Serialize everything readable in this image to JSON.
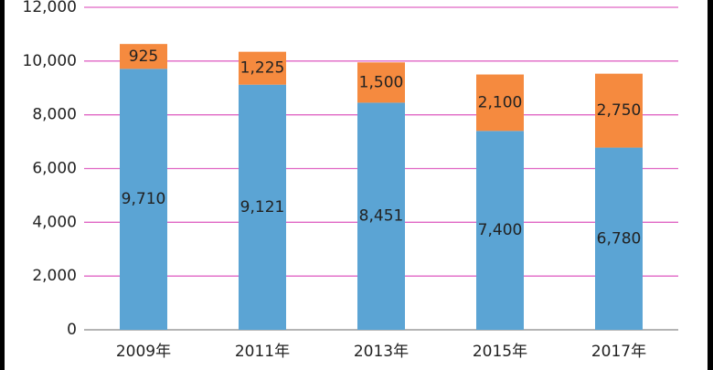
{
  "chart_data": {
    "type": "stacked-bar",
    "categories": [
      "2009年",
      "2011年",
      "2013年",
      "2015年",
      "2017年"
    ],
    "series": [
      {
        "color": "#5ba4d4",
        "values": [
          9710,
          9121,
          8451,
          7400,
          6780
        ],
        "value_labels": [
          "9,710",
          "9,121",
          "8,451",
          "7,400",
          "6,780"
        ]
      },
      {
        "color": "#f58a3f",
        "values": [
          925,
          1225,
          1500,
          2100,
          2750
        ],
        "value_labels": [
          "925",
          "1,225",
          "1,500",
          "2,100",
          "2,750"
        ]
      }
    ],
    "ylim": [
      0,
      12000
    ],
    "yticks": [
      0,
      {
        "value": 2000,
        "label": "2,000"
      },
      {
        "value": 4000,
        "label": "4,000"
      },
      {
        "value": 6000,
        "label": "6,000"
      },
      {
        "value": 8000,
        "label": "8,000"
      },
      {
        "value": 10000,
        "label": "10,000"
      },
      {
        "value": 12000,
        "label": "12,000"
      }
    ],
    "grid": true,
    "grid_color": "#e066c4"
  }
}
